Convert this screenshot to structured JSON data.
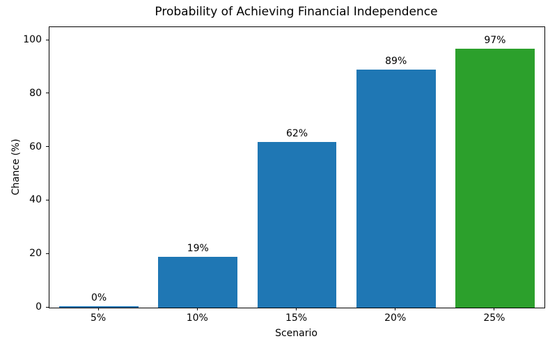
{
  "chart_data": {
    "type": "bar",
    "title": "Probability of Achieving Financial Independence",
    "xlabel": "Scenario",
    "ylabel": "Chance (%)",
    "categories": [
      "5%",
      "10%",
      "15%",
      "20%",
      "25%"
    ],
    "values": [
      0,
      19,
      62,
      89,
      97
    ],
    "bar_labels": [
      "0%",
      "19%",
      "62%",
      "89%",
      "97%"
    ],
    "bar_colors": [
      "#1f77b4",
      "#1f77b4",
      "#1f77b4",
      "#1f77b4",
      "#2ca02c"
    ],
    "yticks": [
      0,
      20,
      40,
      60,
      80,
      100
    ],
    "ylim": [
      0,
      105
    ],
    "grid": false,
    "legend_position": "none",
    "axis_color": "#000000",
    "background_color": "#ffffff"
  }
}
